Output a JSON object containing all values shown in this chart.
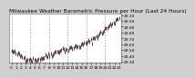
{
  "title": "Milwaukee Weather Barometric Pressure per Hour (Last 24 Hours)",
  "hours": [
    0,
    1,
    2,
    3,
    4,
    5,
    6,
    7,
    8,
    9,
    10,
    11,
    12,
    13,
    14,
    15,
    16,
    17,
    18,
    19,
    20,
    21,
    22,
    23
  ],
  "pressure": [
    29.48,
    29.44,
    29.4,
    29.36,
    29.34,
    29.33,
    29.35,
    29.38,
    29.42,
    29.44,
    29.48,
    29.52,
    29.5,
    29.54,
    29.56,
    29.58,
    29.62,
    29.66,
    29.72,
    29.78,
    29.85,
    29.92,
    29.98,
    30.05
  ],
  "ylim_min": 29.28,
  "ylim_max": 30.12,
  "bg_color": "#d0d0d0",
  "plot_bg_color": "#ffffff",
  "line_color": "#dd0000",
  "marker_color": "#000000",
  "grid_color": "#999999",
  "title_fontsize": 4.2,
  "tick_fontsize": 3.2,
  "ytick_values": [
    29.3,
    29.4,
    29.5,
    29.6,
    29.7,
    29.8,
    29.9,
    30.0,
    30.1
  ],
  "grid_x": [
    0,
    4,
    8,
    12,
    16,
    20
  ],
  "noise_seed": 42,
  "noise_std": 0.022
}
